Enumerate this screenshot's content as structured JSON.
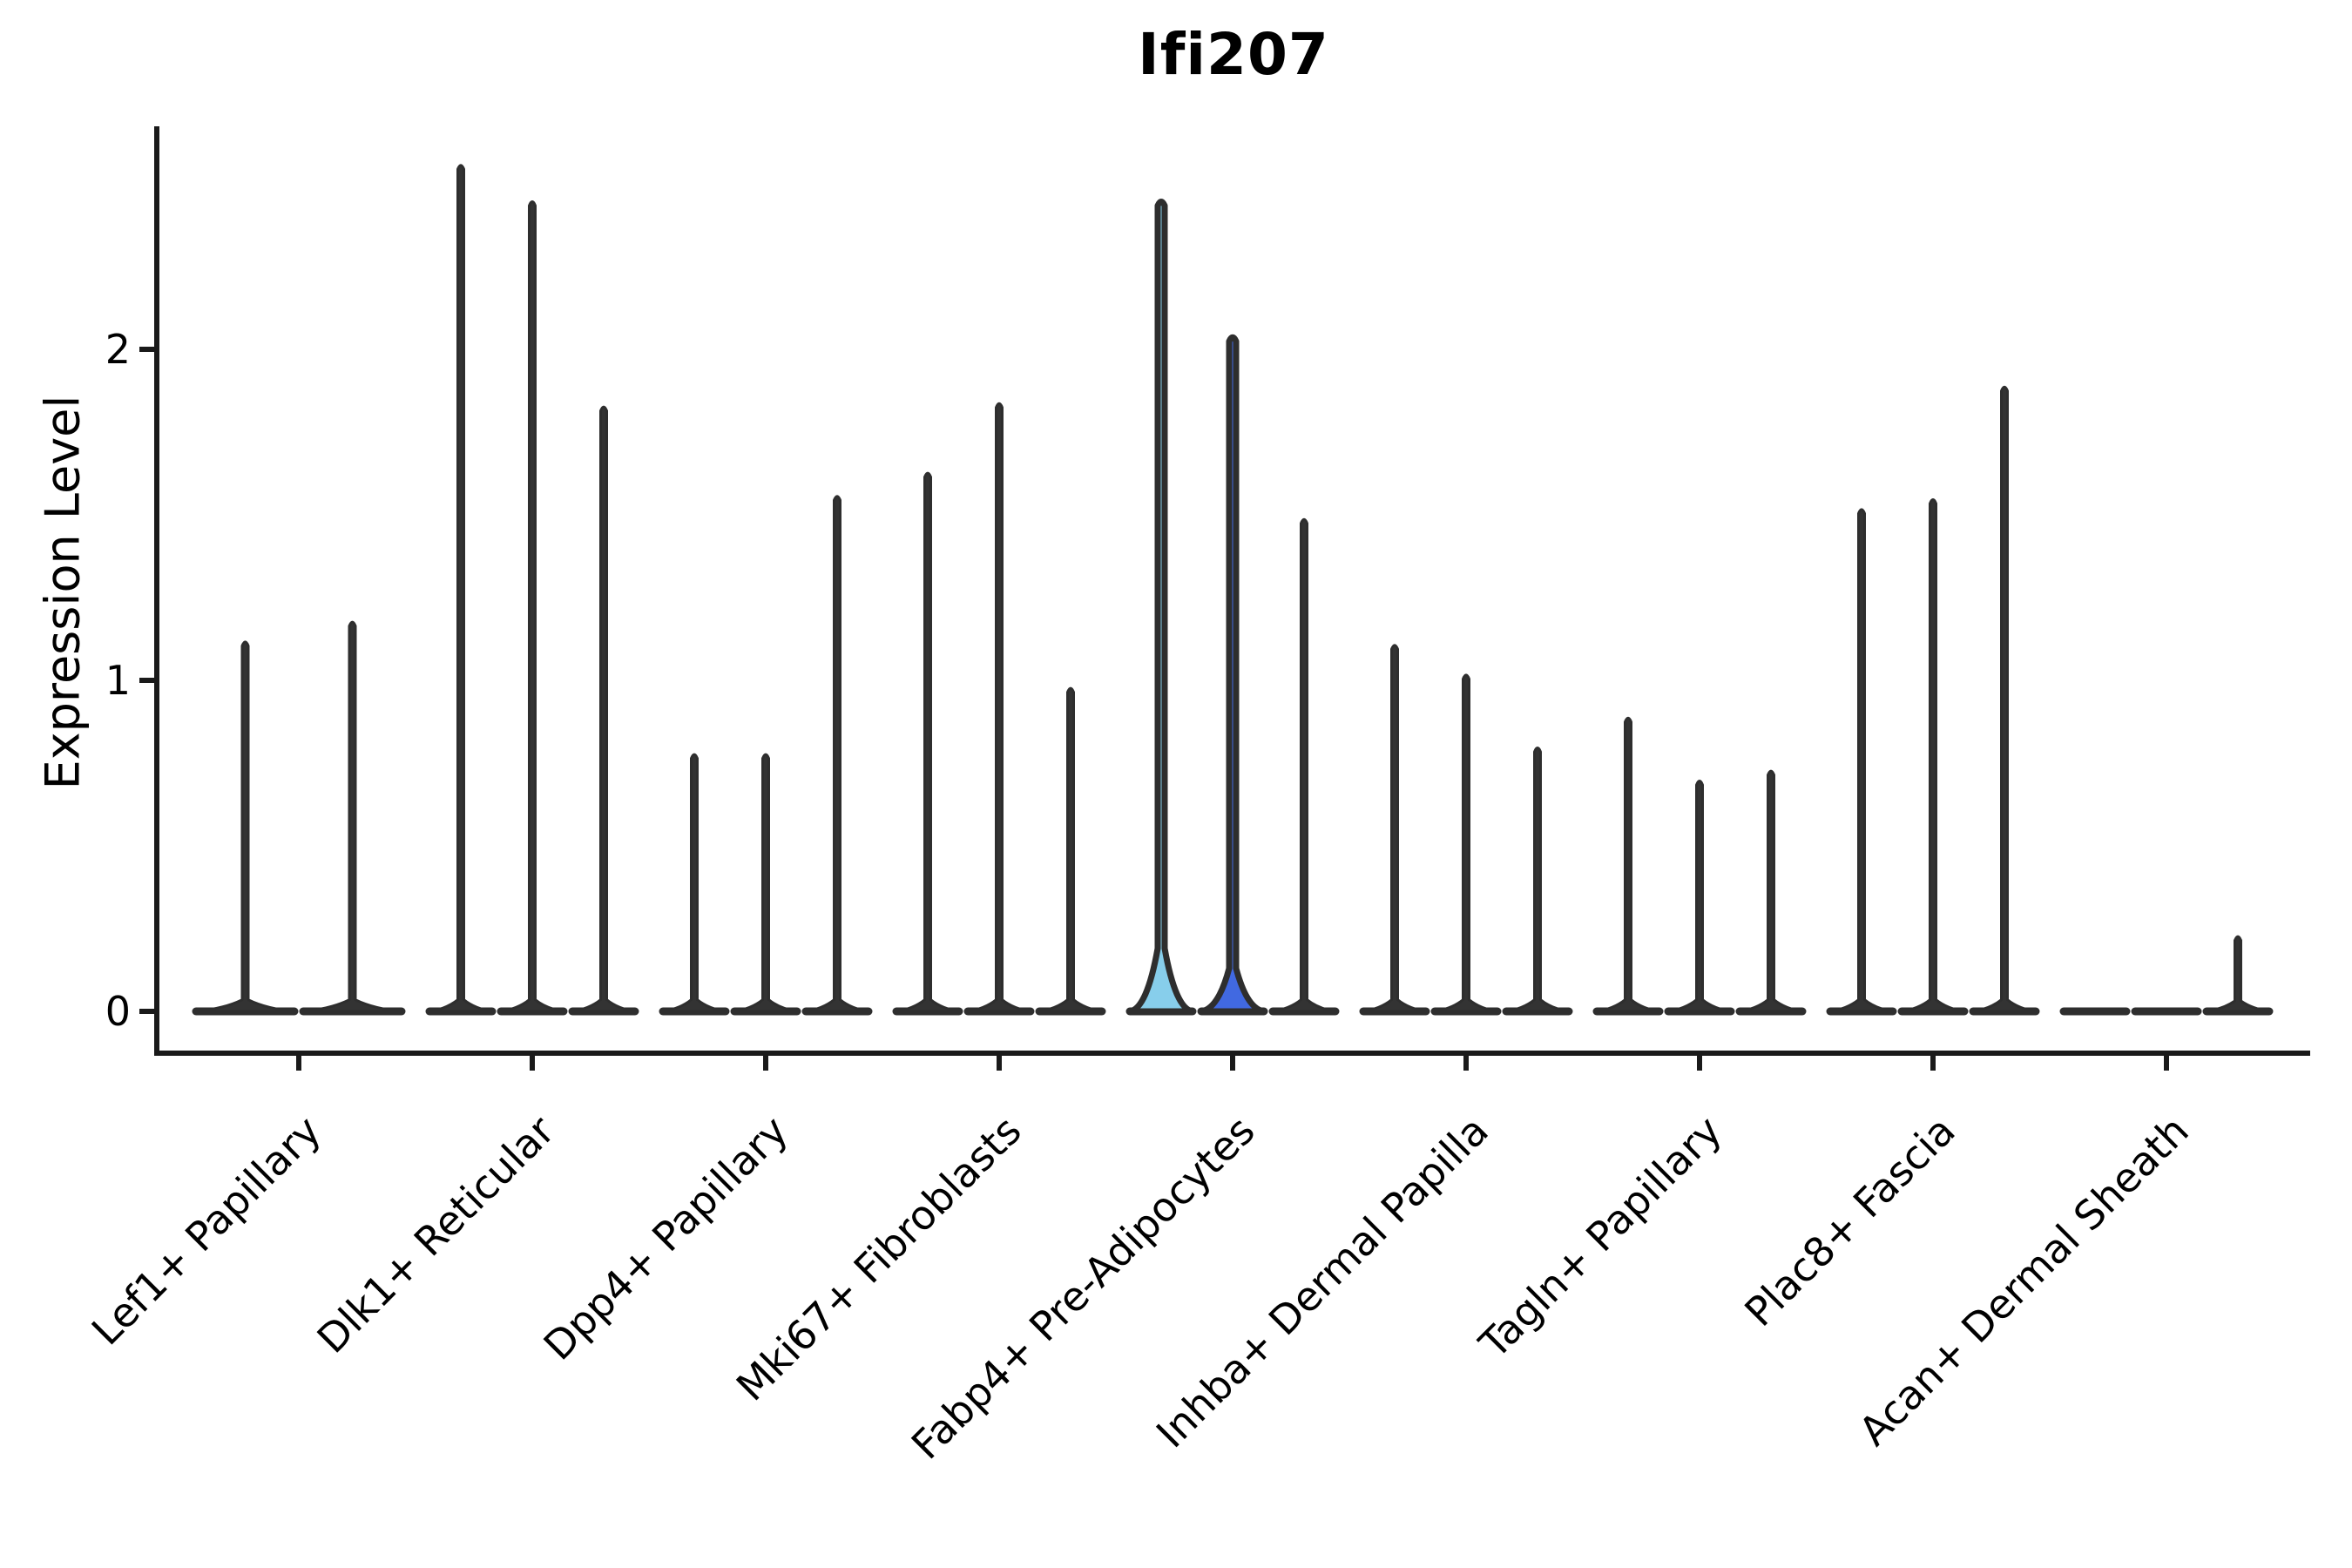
{
  "title": "Ifi207",
  "chart_data": {
    "type": "violin",
    "title": "Ifi207",
    "xlabel": "",
    "ylabel": "Expression Level",
    "yticks": [
      0,
      1,
      2
    ],
    "ylim": [
      -0.13,
      2.67
    ],
    "grid": false,
    "legend": "none",
    "categories": [
      "Lef1+ Papillary",
      "Dlk1+ Reticular",
      "Dpp4+ Papillary",
      "Mki67+ Fibroblasts",
      "Fabp4+ Pre-Adipocytes",
      "Inhba+ Dermal Papilla",
      "Tagln+ Papillary",
      "Plac8+ Fascia",
      "Acan+ Dermal Sheath"
    ],
    "groups": [
      {
        "category": "Lef1+ Papillary",
        "violins": [
          {
            "max": 1.12,
            "color": "dark",
            "bulge": 0.035
          },
          {
            "max": 1.18,
            "color": "dark",
            "bulge": 0.035
          }
        ]
      },
      {
        "category": "Dlk1+ Reticular",
        "violins": [
          {
            "max": 2.56,
            "color": "dark",
            "bulge": 0.035
          },
          {
            "max": 2.45,
            "color": "dark",
            "bulge": 0.035
          },
          {
            "max": 1.83,
            "color": "dark",
            "bulge": 0.035
          }
        ]
      },
      {
        "category": "Dpp4+ Papillary",
        "violins": [
          {
            "max": 0.78,
            "color": "dark",
            "bulge": 0.035
          },
          {
            "max": 0.78,
            "color": "dark",
            "bulge": 0.035
          },
          {
            "max": 1.56,
            "color": "dark",
            "bulge": 0.035
          }
        ]
      },
      {
        "category": "Mki67+ Fibroblasts",
        "violins": [
          {
            "max": 1.63,
            "color": "dark",
            "bulge": 0.035
          },
          {
            "max": 1.84,
            "color": "dark",
            "bulge": 0.035
          },
          {
            "max": 0.98,
            "color": "dark",
            "bulge": 0.035
          }
        ]
      },
      {
        "category": "Fabp4+ Pre-Adipocytes",
        "violins": [
          {
            "max": 2.45,
            "color": "skyblue",
            "bulge": 0.19
          },
          {
            "max": 2.04,
            "color": "royalblue",
            "bulge": 0.13
          },
          {
            "max": 1.49,
            "color": "dark",
            "bulge": 0.035
          }
        ]
      },
      {
        "category": "Inhba+ Dermal Papilla",
        "violins": [
          {
            "max": 1.11,
            "color": "dark",
            "bulge": 0.035
          },
          {
            "max": 1.02,
            "color": "dark",
            "bulge": 0.035
          },
          {
            "max": 0.8,
            "color": "dark",
            "bulge": 0.035
          }
        ]
      },
      {
        "category": "Tagln+ Papillary",
        "violins": [
          {
            "max": 0.89,
            "color": "dark",
            "bulge": 0.035
          },
          {
            "max": 0.7,
            "color": "dark",
            "bulge": 0.035
          },
          {
            "max": 0.73,
            "color": "dark",
            "bulge": 0.035
          }
        ]
      },
      {
        "category": "Plac8+ Fascia",
        "violins": [
          {
            "max": 1.52,
            "color": "dark",
            "bulge": 0.035
          },
          {
            "max": 1.55,
            "color": "dark",
            "bulge": 0.035
          },
          {
            "max": 1.89,
            "color": "dark",
            "bulge": 0.035
          }
        ]
      },
      {
        "category": "Acan+ Dermal Sheath",
        "violins": [
          {
            "max": 0.0,
            "color": "dark",
            "bulge": 0.0
          },
          {
            "max": 0.0,
            "color": "dark",
            "bulge": 0.0
          },
          {
            "max": 0.23,
            "color": "dark",
            "bulge": 0.03
          }
        ]
      }
    ],
    "colors": {
      "dark": "#333333",
      "skyblue": "#87CEEB",
      "royalblue": "#4169E1",
      "outline": "#2e2e2e",
      "axis": "#1a1a1a"
    }
  }
}
